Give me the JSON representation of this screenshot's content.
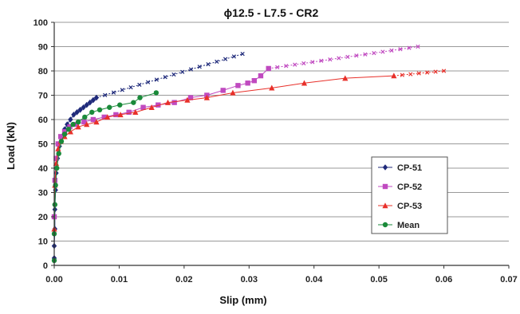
{
  "chart_data": {
    "type": "scatter",
    "title": "ϕ12.5 - L7.5 - CR2",
    "xlabel": "Slip (mm)",
    "ylabel": "Load (kN)",
    "xlim": [
      0,
      0.07
    ],
    "ylim": [
      0,
      100
    ],
    "xticks": [
      "0.00",
      "0.01",
      "0.02",
      "0.03",
      "0.04",
      "0.05",
      "0.06",
      "0.07"
    ],
    "yticks": [
      "0",
      "10",
      "20",
      "30",
      "40",
      "50",
      "60",
      "70",
      "80",
      "90",
      "100"
    ],
    "grid": "horizontal",
    "legend_position": "right",
    "series": [
      {
        "name": "CP-51",
        "color": "#1f2a7a",
        "marker": "diamond",
        "x": [
          0.0,
          0.0,
          0.0001,
          0.0001,
          0.0002,
          0.0003,
          0.0005,
          0.0008,
          0.0012,
          0.0016,
          0.002,
          0.0025,
          0.003,
          0.0035,
          0.004,
          0.0045,
          0.005,
          0.0055,
          0.006,
          0.0065
        ],
        "y": [
          3,
          8,
          15,
          23,
          31,
          38,
          44,
          49,
          53,
          56,
          58,
          60,
          62,
          63,
          64,
          65,
          66,
          67,
          68,
          69
        ]
      },
      {
        "name": "CP-52",
        "color": "#c04ac0",
        "marker": "square",
        "x": [
          0.0,
          0.0001,
          0.0003,
          0.0006,
          0.001,
          0.0016,
          0.0024,
          0.0034,
          0.0046,
          0.006,
          0.0077,
          0.0095,
          0.0115,
          0.0137,
          0.016,
          0.0185,
          0.021,
          0.0235,
          0.026,
          0.0283,
          0.0298,
          0.0308,
          0.0318,
          0.033
        ],
        "y": [
          20,
          35,
          44,
          50,
          53,
          55,
          57,
          58,
          59,
          60,
          61,
          62,
          63,
          65,
          66,
          67,
          69,
          70,
          72,
          74,
          75,
          76,
          78,
          81
        ]
      },
      {
        "name": "CP-53",
        "color": "#e8302a",
        "marker": "triangle",
        "x": [
          0.0,
          0.0001,
          0.0003,
          0.0006,
          0.001,
          0.0016,
          0.0025,
          0.0037,
          0.005,
          0.0065,
          0.0082,
          0.0102,
          0.0125,
          0.015,
          0.0175,
          0.0205,
          0.0235,
          0.0275,
          0.0335,
          0.0385,
          0.0448,
          0.0523
        ],
        "y": [
          15,
          33,
          42,
          48,
          51,
          53,
          55,
          57,
          58,
          59,
          61,
          62,
          63,
          65,
          67,
          68,
          69,
          71,
          73,
          75,
          77,
          78
        ]
      },
      {
        "name": "Mean",
        "color": "#1a8a3a",
        "marker": "circle",
        "x": [
          0.0,
          0.0,
          0.0001,
          0.0002,
          0.0004,
          0.0007,
          0.0011,
          0.0016,
          0.0022,
          0.0029,
          0.0037,
          0.0047,
          0.0058,
          0.007,
          0.0085,
          0.0101,
          0.0122,
          0.0132,
          0.0157
        ],
        "y": [
          2,
          13,
          25,
          33,
          40,
          46,
          51,
          54,
          56,
          58,
          59,
          61,
          63,
          64,
          65,
          66,
          67,
          69,
          71
        ]
      }
    ],
    "extension_lines": [
      {
        "series": "CP-51",
        "x": [
          0.0065,
          0.029
        ],
        "y": [
          69,
          87
        ]
      },
      {
        "series": "CP-52",
        "x": [
          0.033,
          0.056
        ],
        "y": [
          81,
          90
        ]
      },
      {
        "series": "CP-53",
        "x": [
          0.0523,
          0.06
        ],
        "y": [
          78,
          80
        ]
      }
    ]
  }
}
